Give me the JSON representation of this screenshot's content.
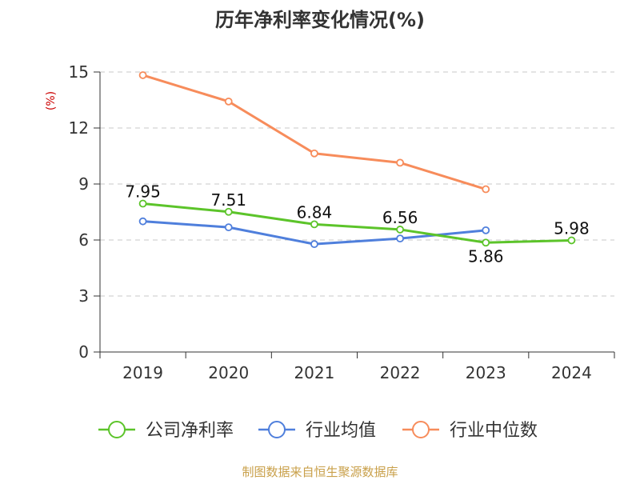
{
  "chart_data": {
    "type": "line",
    "title": "历年净利率变化情况(%)",
    "ylabel": "(%)",
    "xlabel": "",
    "categories": [
      "2019",
      "2020",
      "2021",
      "2022",
      "2023",
      "2024"
    ],
    "ylim": [
      0,
      15
    ],
    "yticks": [
      "0",
      "3",
      "6",
      "9",
      "12",
      "15"
    ],
    "grid": true,
    "legend_position": "bottom",
    "series": [
      {
        "name": "公司净利率",
        "color": "#5cc42a",
        "values": [
          7.95,
          7.51,
          6.84,
          6.56,
          5.86,
          5.98
        ],
        "labels": [
          "7.95",
          "7.51",
          "6.84",
          "6.56",
          "5.86",
          "5.98"
        ]
      },
      {
        "name": "行业均值",
        "color": "#4f7fdc",
        "values": [
          7.0,
          6.68,
          5.78,
          6.08,
          6.52,
          null
        ]
      },
      {
        "name": "行业中位数",
        "color": "#f78c5b",
        "values": [
          14.83,
          13.42,
          10.64,
          10.14,
          8.72,
          null
        ]
      }
    ],
    "source": "制图数据来自恒生聚源数据库"
  }
}
